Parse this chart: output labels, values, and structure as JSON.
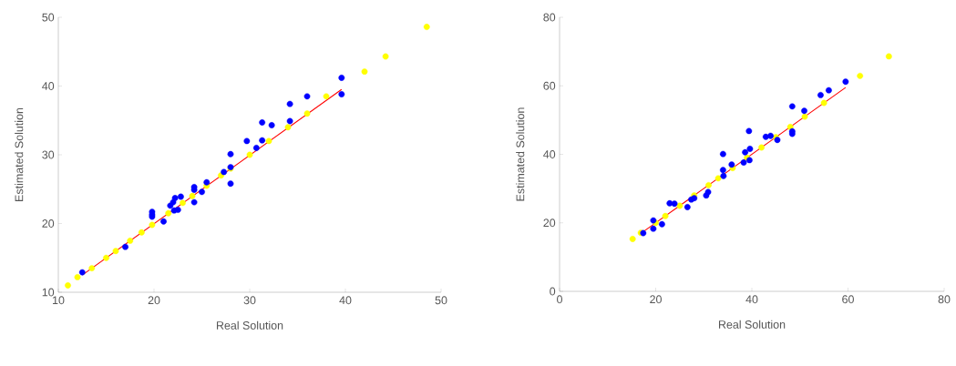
{
  "chart_data": [
    {
      "type": "scatter",
      "xlabel": "Real Solution",
      "ylabel": "Estimated Solution",
      "xlim": [
        10,
        50
      ],
      "ylim": [
        10,
        50
      ],
      "xticks": [
        10,
        20,
        30,
        40,
        50
      ],
      "yticks": [
        10,
        20,
        30,
        40,
        50
      ],
      "series": [
        {
          "marker": "circle",
          "color": "#ffff00",
          "x": [
            11,
            12,
            13.5,
            15,
            16,
            17.5,
            18.7,
            19.8,
            21.5,
            23,
            24,
            25.5,
            27,
            28,
            30,
            32,
            34,
            36,
            38,
            42,
            44.2,
            48.5
          ],
          "values": [
            11,
            12.2,
            13.5,
            15,
            16,
            17.5,
            18.7,
            19.8,
            21.5,
            23,
            24,
            25.5,
            27,
            28,
            30,
            32,
            34,
            36,
            38.5,
            42.1,
            44.3,
            48.6
          ]
        },
        {
          "marker": "circle",
          "color": "#0000ff",
          "x": [
            12.5,
            17,
            19.8,
            19.8,
            19.8,
            21,
            21.7,
            22,
            22.2,
            22.1,
            22.5,
            22.8,
            24.2,
            24.2,
            24.2,
            25,
            25.5,
            27.3,
            28,
            28,
            28,
            29.7,
            30.7,
            31.3,
            31.3,
            32.3,
            34.2,
            34.2,
            36,
            39.6,
            39.6
          ],
          "values": [
            12.9,
            16.6,
            21.7,
            21.3,
            21.0,
            20.3,
            22.6,
            23.1,
            23.7,
            21.9,
            22.0,
            23.9,
            25.3,
            23.1,
            24.9,
            24.6,
            26,
            27.5,
            30.1,
            28.2,
            25.8,
            32,
            31,
            34.7,
            32.1,
            34.3,
            37.4,
            34.9,
            38.5,
            41.2,
            38.8
          ]
        },
        {
          "type": "line",
          "marker": "none",
          "color": "#ff0000",
          "x": [
            12.5,
            39.6
          ],
          "values": [
            12.5,
            39.5
          ]
        }
      ]
    },
    {
      "type": "scatter",
      "xlabel": "Real Solution",
      "ylabel": "Estimated Solution",
      "xlim": [
        0,
        80
      ],
      "ylim": [
        0,
        80
      ],
      "xticks": [
        0,
        20,
        40,
        60,
        80
      ],
      "yticks": [
        0,
        20,
        40,
        60,
        80
      ],
      "series": [
        {
          "marker": "circle",
          "color": "#ffff00",
          "x": [
            15.2,
            16.9,
            20,
            22,
            25,
            28,
            31,
            33,
            36,
            39,
            42,
            45,
            48,
            51,
            55,
            62.5,
            68.5
          ],
          "values": [
            15.3,
            17.1,
            20,
            22,
            25,
            28,
            31,
            33,
            36,
            39,
            42,
            45,
            48,
            51,
            55,
            62.9,
            68.6
          ]
        },
        {
          "marker": "circle",
          "color": "#0000ff",
          "x": [
            17.4,
            19.5,
            19.5,
            21.3,
            22.9,
            23.9,
            26.6,
            27.4,
            28,
            30.5,
            30.9,
            34,
            34,
            34.1,
            35.8,
            38.3,
            38.6,
            39.4,
            39.6,
            39.5,
            42.9,
            43.9,
            45.3,
            48.4,
            48.4,
            48.4,
            50.9,
            54.3,
            56,
            59.5
          ],
          "values": [
            17,
            20.7,
            18.3,
            19.6,
            25.7,
            25.6,
            24.6,
            26.8,
            27.2,
            28,
            29,
            40.1,
            35.4,
            33.7,
            37,
            37.6,
            40.6,
            46.8,
            41.6,
            38.3,
            45.1,
            45.4,
            44.2,
            54,
            46.7,
            46,
            52.7,
            57.3,
            58.7,
            61.2
          ]
        },
        {
          "type": "line",
          "marker": "none",
          "color": "#ff0000",
          "x": [
            17.5,
            59.5
          ],
          "values": [
            17.5,
            59.5
          ]
        }
      ]
    }
  ]
}
